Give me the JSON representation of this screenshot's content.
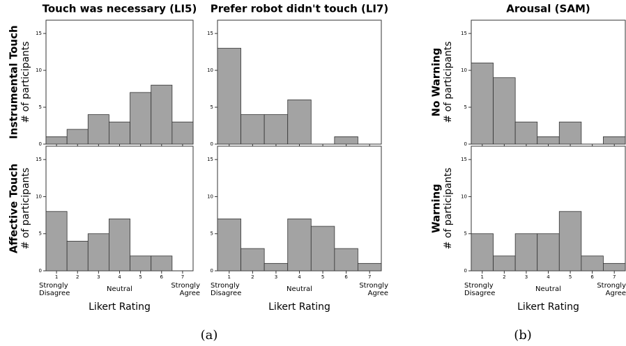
{
  "chart_data": [
    {
      "type": "bar",
      "title": "Touch was necessary (LI5)",
      "row_label": "Instrumental Touch",
      "ylabel": "# of participants",
      "values": [
        1,
        2,
        4,
        3,
        7,
        8,
        3
      ],
      "color": "#a3a3a3",
      "ylim": [
        0,
        16.8
      ],
      "yticks": [
        0,
        5,
        10,
        15
      ]
    },
    {
      "type": "bar",
      "title": "Prefer robot didn't touch (LI7)",
      "values": [
        13,
        4,
        4,
        6,
        0,
        1,
        0
      ],
      "color": "#a3a3a3",
      "ylim": [
        0,
        16.8
      ],
      "yticks": [
        0,
        5,
        10,
        15
      ]
    },
    {
      "type": "bar",
      "title": "Arousal (SAM)",
      "row_label": "No Warning",
      "ylabel": "# of participants",
      "values": [
        11,
        9,
        3,
        1,
        3,
        0,
        1
      ],
      "color": "#a3a3a3",
      "ylim": [
        0,
        16.8
      ],
      "yticks": [
        0,
        5,
        10,
        15
      ]
    },
    {
      "type": "bar",
      "row_label": "Affective Touch",
      "ylabel": "# of participants",
      "categories": [
        "1",
        "2",
        "3",
        "4",
        "5",
        "6",
        "7"
      ],
      "values": [
        8,
        4,
        5,
        7,
        2,
        2,
        0
      ],
      "color": "#a3a3a3",
      "ylim": [
        0,
        16.8
      ],
      "yticks": [
        0,
        5,
        10,
        15
      ],
      "xlabel": "Likert Rating",
      "x_annotations": [
        "Strongly\nDisagree",
        "Neutral",
        "Strongly\nAgree"
      ]
    },
    {
      "type": "bar",
      "categories": [
        "1",
        "2",
        "3",
        "4",
        "5",
        "6",
        "7"
      ],
      "values": [
        7,
        3,
        1,
        7,
        6,
        3,
        1
      ],
      "color": "#a3a3a3",
      "ylim": [
        0,
        16.8
      ],
      "yticks": [
        0,
        5,
        10,
        15
      ],
      "xlabel": "Likert Rating",
      "x_annotations": [
        "Strongly\nDisagree",
        "Neutral",
        "Strongly\nAgree"
      ]
    },
    {
      "type": "bar",
      "row_label": "Warning",
      "ylabel": "# of participants",
      "categories": [
        "1",
        "2",
        "3",
        "4",
        "5",
        "6",
        "7"
      ],
      "values": [
        5,
        2,
        5,
        5,
        8,
        2,
        1
      ],
      "color": "#a3a3a3",
      "ylim": [
        0,
        16.8
      ],
      "yticks": [
        0,
        5,
        10,
        15
      ],
      "xlabel": "Likert Rating",
      "x_annotations": [
        "Strongly\nDisagree",
        "Neutral",
        "Strongly\nAgree"
      ]
    }
  ],
  "captions": [
    "(a)",
    "(b)"
  ]
}
